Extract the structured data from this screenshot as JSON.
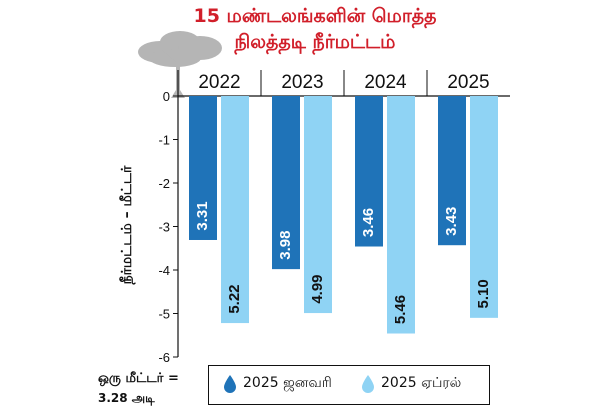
{
  "title_line1": "15 மண்டலங்களின் மொத்த",
  "title_line2": "நிலத்தடி நீர்மட்டம்",
  "conversion_line1": "ஒரு மீட்டர் =",
  "conversion_line2": "3.28 அடி",
  "colors": {
    "january": "#1f73b8",
    "april": "#8fd3f4",
    "title": "#d11f2a"
  },
  "chart_data": {
    "type": "bar",
    "title": "15 மண்டலங்களின் மொத்த நிலத்தடி நீர்மட்டம்",
    "ylabel": "நீர்மட்டம் – மீட்டர்",
    "xlabel": "",
    "categories": [
      "2022",
      "2023",
      "2024",
      "2025"
    ],
    "series": [
      {
        "name": "2025 ஜனவரி",
        "values": [
          -3.31,
          -3.98,
          -3.46,
          -3.43
        ],
        "labels": [
          "3.31",
          "3.98",
          "3.46",
          "3.43"
        ]
      },
      {
        "name": "2025 ஏப்ரல்",
        "values": [
          -5.22,
          -4.99,
          -5.46,
          -5.1
        ],
        "labels": [
          "5.22",
          "4.99",
          "5.46",
          "5.10"
        ]
      }
    ],
    "ylim": [
      -6,
      0
    ],
    "yticks": [
      "0",
      "-1",
      "-2",
      "-3",
      "-4",
      "-5",
      "-6"
    ],
    "legend": "bottom"
  }
}
